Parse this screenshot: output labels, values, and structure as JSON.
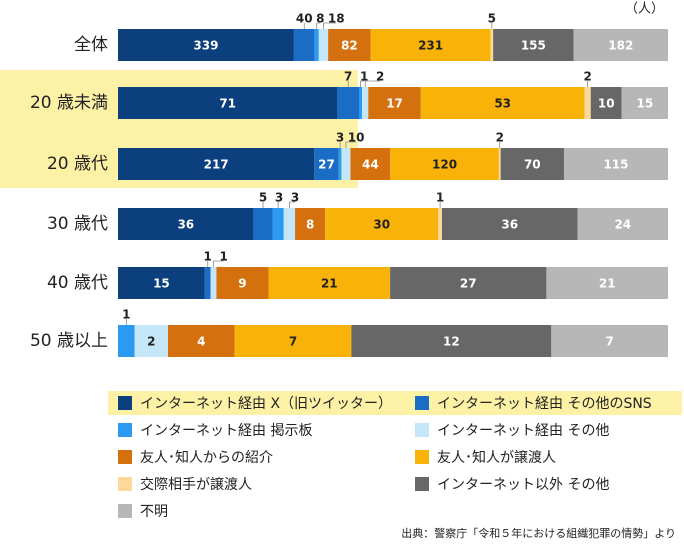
{
  "chart_data": {
    "type": "stacked-bar-100",
    "unit": "（人）",
    "source": "出典：警察庁「令和５年における組織犯罪の情勢」より",
    "categories": [
      "全体",
      "20 歳未満",
      "20 歳代",
      "30 歳代",
      "40 歳代",
      "50 歳以上"
    ],
    "series": [
      {
        "name": "インターネット経由 X（旧ツイッター）",
        "color": "#0b3f7e",
        "values": [
          339,
          71,
          217,
          36,
          15,
          0
        ]
      },
      {
        "name": "インターネット経由 その他のSNS",
        "color": "#1a6cc4",
        "values": [
          40,
          7,
          27,
          5,
          1,
          0
        ]
      },
      {
        "name": "インターネット経由 掲示板",
        "color": "#2b9af0",
        "values": [
          8,
          1,
          3,
          3,
          0,
          1
        ]
      },
      {
        "name": "インターネット経由 その他",
        "color": "#c4e6f8",
        "values": [
          18,
          2,
          10,
          3,
          1,
          2
        ]
      },
      {
        "name": "友人･知人からの紹介",
        "color": "#d5700f",
        "values": [
          82,
          17,
          44,
          8,
          9,
          4
        ]
      },
      {
        "name": "友人･知人が譲渡人",
        "color": "#f9b208",
        "values": [
          231,
          53,
          120,
          30,
          21,
          7
        ]
      },
      {
        "name": "交際相手が譲渡人",
        "color": "#fcd99a",
        "values": [
          5,
          2,
          2,
          1,
          0,
          0
        ]
      },
      {
        "name": "インターネット以外 その他",
        "color": "#676767",
        "values": [
          155,
          10,
          70,
          36,
          27,
          12
        ]
      },
      {
        "name": "不明",
        "color": "#b7b7b7",
        "values": [
          182,
          15,
          115,
          24,
          21,
          7
        ]
      }
    ]
  }
}
